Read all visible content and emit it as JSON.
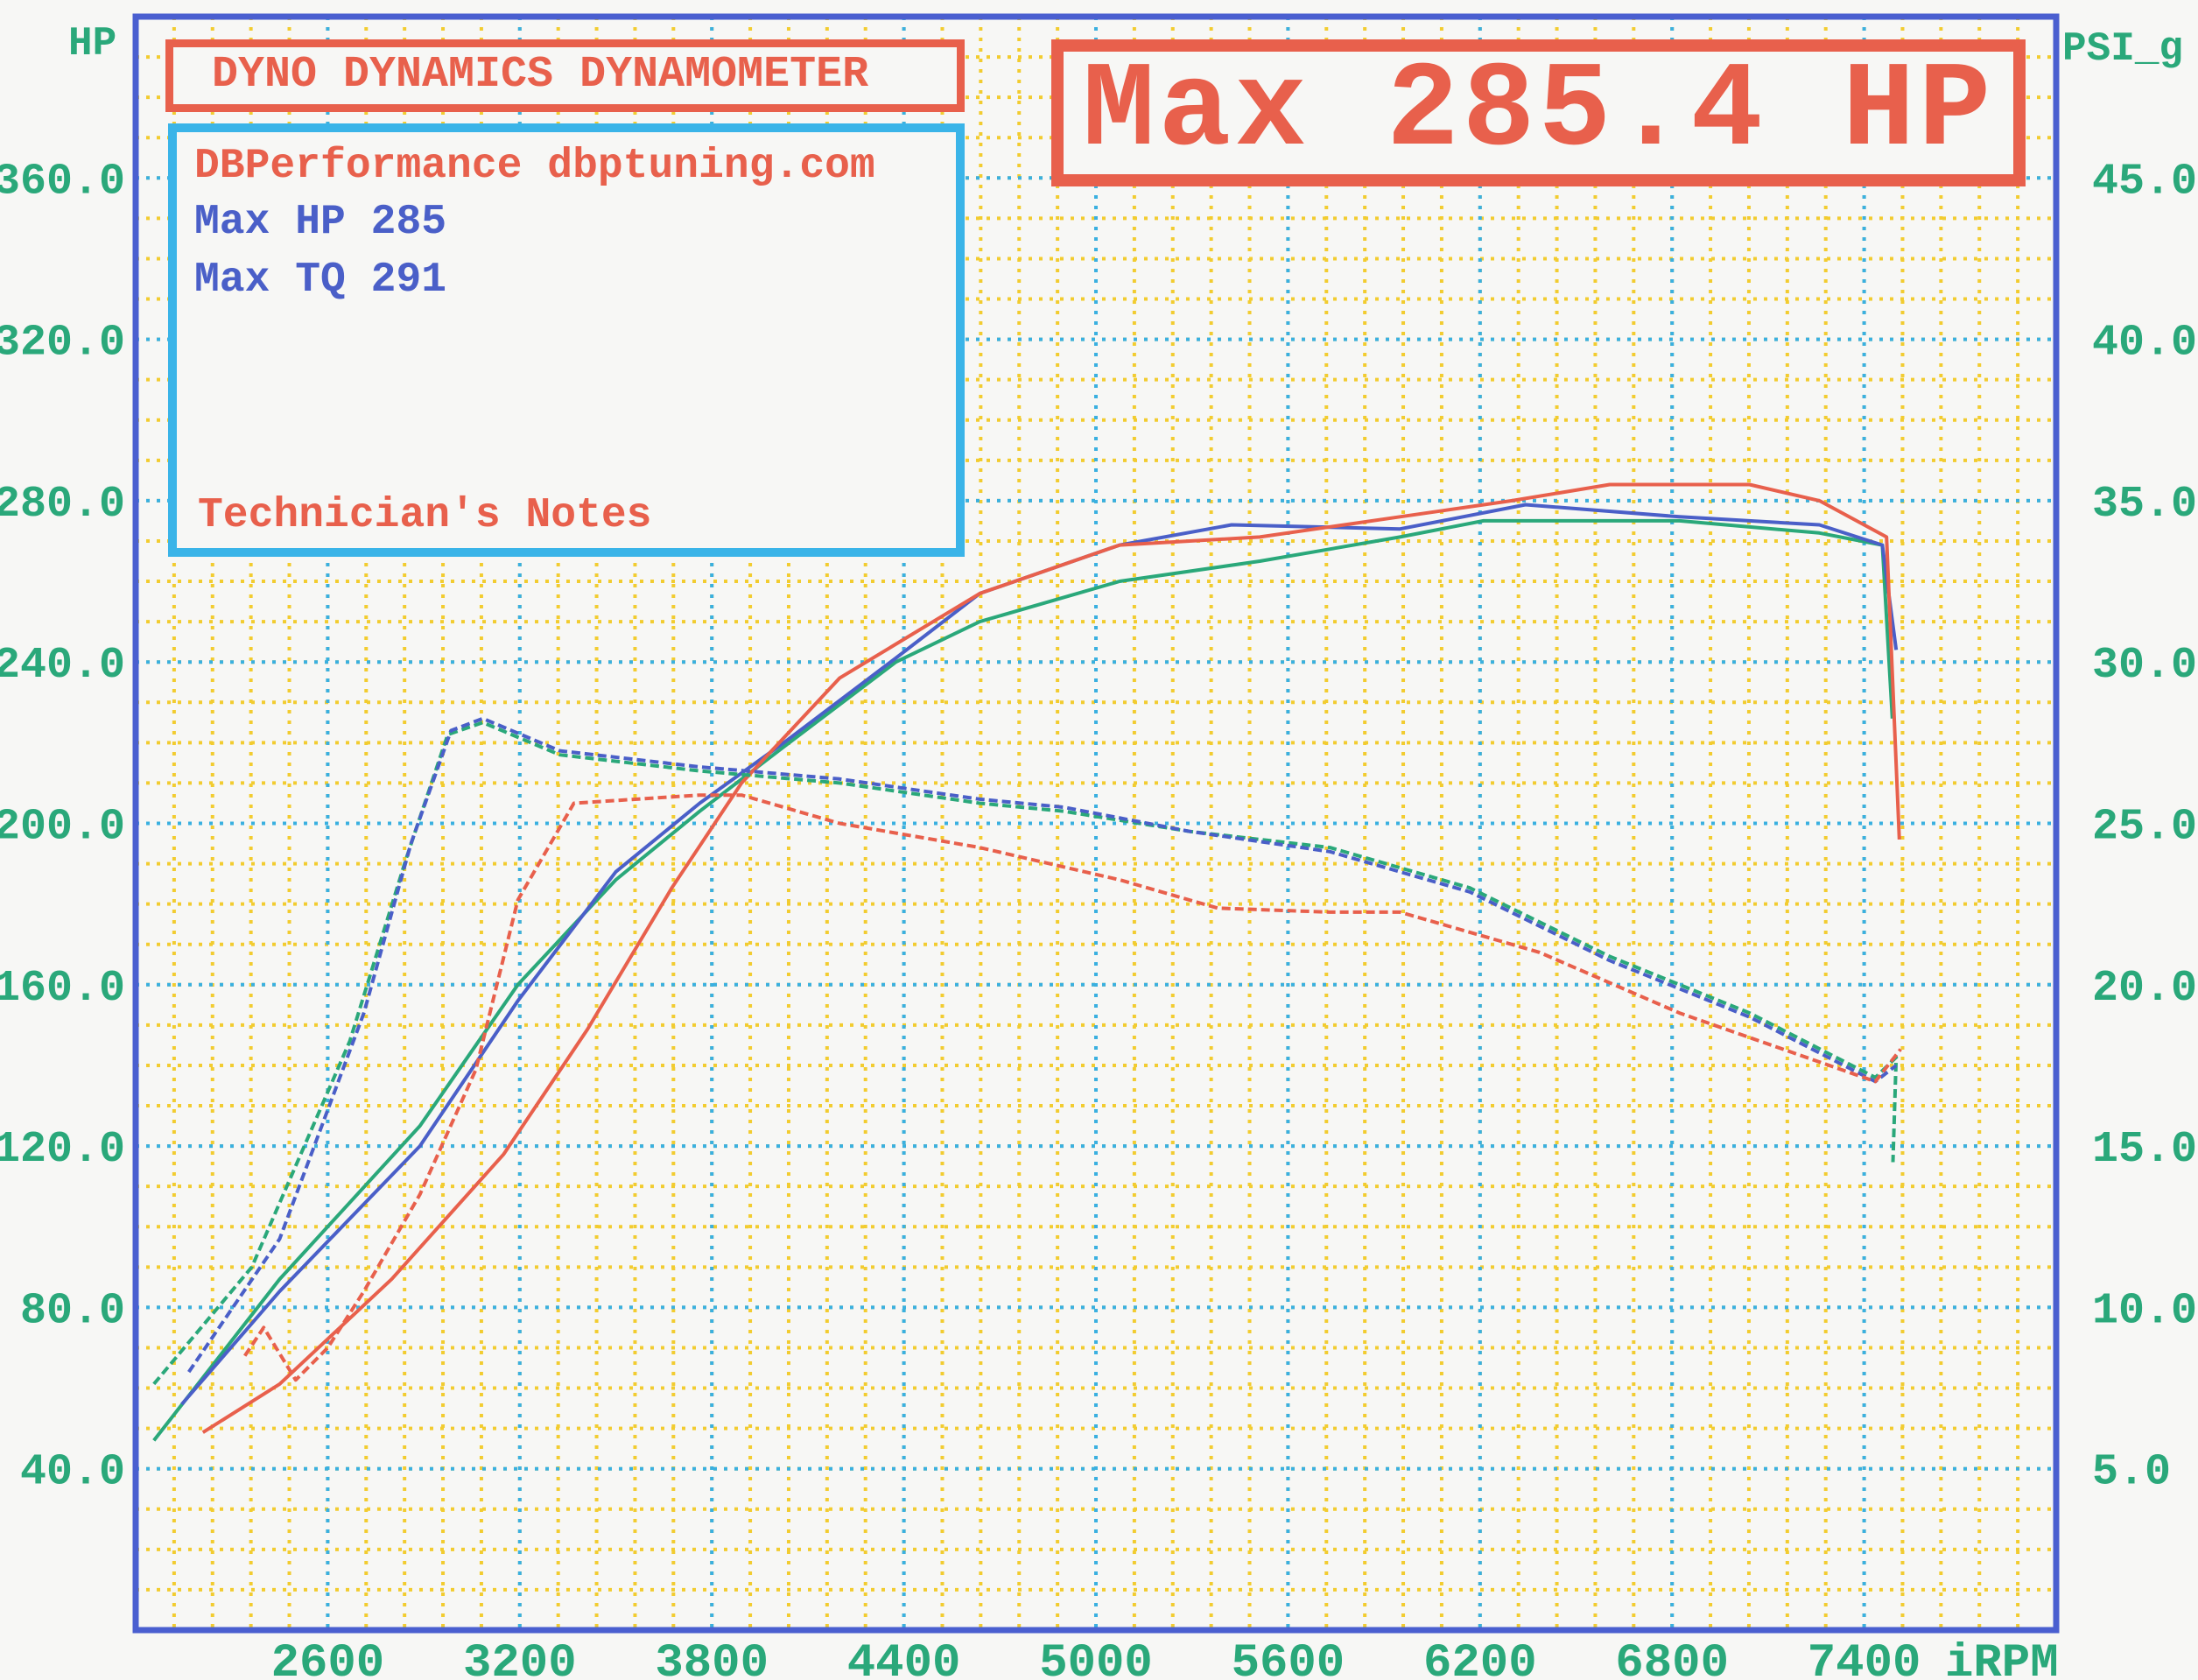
{
  "header": {
    "title": "DYNO DYNAMICS DYNAMOMETER",
    "shop_line": "DBPerformance dbptuning.com",
    "max_hp_line": "Max HP 285",
    "max_tq_line": "Max TQ 291",
    "notes_label": "Technician's Notes",
    "max_banner": "Max 285.4 HP"
  },
  "colors": {
    "red": "#e8604c",
    "blue": "#4a5fc8",
    "green": "#2aa87a",
    "frame": "#4a5fd0",
    "major_grid": "#3ab0e0",
    "minor_grid": "#f2cc30",
    "axis_label": "#2aa87a"
  },
  "chart_data": {
    "type": "line",
    "title": "DYNO DYNAMICS DYNAMOMETER",
    "xlabel": "iRPM",
    "ylabel": "HP",
    "y2label": "PSI_g",
    "xlim": [
      2000,
      8000
    ],
    "ylim": [
      0,
      400
    ],
    "y2lim": [
      0,
      50
    ],
    "grid": true,
    "x_ticks": [
      2600,
      3200,
      3800,
      4400,
      5000,
      5600,
      6200,
      6800,
      7400
    ],
    "x_tick_labels": [
      "2600",
      "3200",
      "3800",
      "4400",
      "5000",
      "5600",
      "6200",
      "6800",
      "7400"
    ],
    "y_ticks": [
      40,
      80,
      120,
      160,
      200,
      240,
      280,
      320,
      360
    ],
    "y_tick_labels": [
      "40.0",
      "80.0",
      "120.0",
      "160.0",
      "200.0",
      "240.0",
      "280.0",
      "320.0",
      "360.0"
    ],
    "y2_ticks": [
      5,
      10,
      15,
      20,
      25,
      30,
      35,
      40,
      45
    ],
    "y2_tick_labels": [
      "5.0",
      "10.0",
      "15.0",
      "20.0",
      "25.0",
      "30.0",
      "35.0",
      "40.0",
      "45.0"
    ],
    "series": [
      {
        "color": "#2aa87a",
        "style": "solid",
        "x": [
          2057,
          2450,
          2888,
          3194,
          3500,
          3762,
          4025,
          4375,
          4637,
          5074,
          5512,
          5950,
          6211,
          6823,
          7260,
          7457,
          7488
        ],
        "y": [
          47,
          87,
          125,
          160,
          186,
          203,
          219,
          240,
          250,
          260,
          265,
          271,
          275,
          275,
          272,
          269,
          226
        ]
      },
      {
        "color": "#4a5fc8",
        "style": "solid",
        "x": [
          2144,
          2450,
          2888,
          3194,
          3500,
          3762,
          4025,
          4375,
          4637,
          5074,
          5424,
          5950,
          6342,
          6823,
          7260,
          7457,
          7500
        ],
        "y": [
          56,
          84,
          120,
          156,
          188,
          205,
          220,
          241,
          257,
          269,
          274,
          273,
          279,
          276,
          274,
          269,
          243
        ]
      },
      {
        "color": "#e8604c",
        "style": "solid",
        "x": [
          2210,
          2450,
          2800,
          3150,
          3412,
          3675,
          3893,
          4199,
          4637,
          5074,
          5512,
          5950,
          6300,
          6605,
          7042,
          7260,
          7470,
          7510
        ],
        "y": [
          49,
          61,
          87,
          118,
          149,
          184,
          210,
          236,
          257,
          269,
          271,
          276,
          280,
          284,
          284,
          280,
          271,
          196
        ]
      },
      {
        "color": "#2aa87a",
        "style": "dashed",
        "x": [
          2057,
          2363,
          2669,
          2844,
          2975,
          3085,
          3325,
          3762,
          4199,
          4637,
          4900,
          5293,
          5731,
          6168,
          6605,
          7042,
          7435,
          7500,
          7490
        ],
        "y": [
          61,
          90,
          146,
          191,
          222,
          225,
          217,
          213,
          210,
          205,
          203,
          198,
          194,
          184,
          167,
          153,
          137,
          142,
          116
        ]
      },
      {
        "color": "#4a5fc8",
        "style": "dashed",
        "x": [
          2166,
          2450,
          2713,
          2860,
          2985,
          3085,
          3325,
          3762,
          4199,
          4637,
          4900,
          5293,
          5731,
          6168,
          6605,
          7042,
          7435,
          7500
        ],
        "y": [
          64,
          97,
          153,
          195,
          223,
          226,
          218,
          214,
          211,
          206,
          204,
          198,
          193,
          183,
          166,
          152,
          136,
          140
        ]
      },
      {
        "color": "#e8604c",
        "style": "dashed",
        "x": [
          2341,
          2400,
          2500,
          2600,
          2713,
          2888,
          3063,
          3194,
          3369,
          3762,
          3893,
          4199,
          4637,
          5074,
          5380,
          5731,
          5950,
          6386,
          6823,
          7435,
          7514
        ],
        "y": [
          68,
          75,
          62,
          70,
          84,
          108,
          139,
          181,
          205,
          207,
          207,
          200,
          194,
          186,
          179,
          178,
          178,
          168,
          153,
          136,
          144
        ]
      }
    ]
  }
}
